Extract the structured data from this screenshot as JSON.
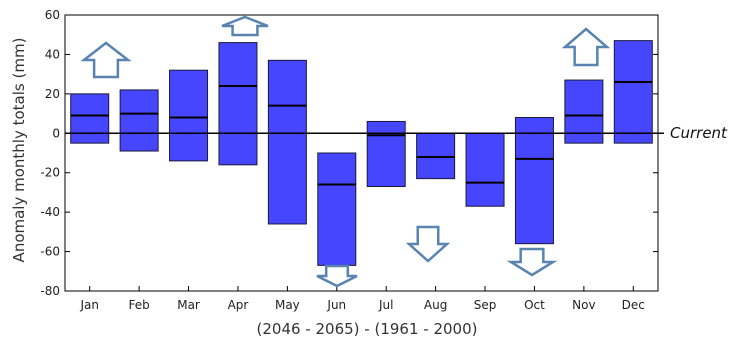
{
  "chart_data": {
    "type": "bar",
    "categories": [
      "Jan",
      "Feb",
      "Mar",
      "Apr",
      "May",
      "Jun",
      "Jul",
      "Aug",
      "Sep",
      "Oct",
      "Nov",
      "Dec"
    ],
    "ranges": [
      {
        "low": -5,
        "high": 20,
        "median": 9
      },
      {
        "low": -9,
        "high": 22,
        "median": 10
      },
      {
        "low": -14,
        "high": 32,
        "median": 8
      },
      {
        "low": -16,
        "high": 46,
        "median": 24
      },
      {
        "low": -46,
        "high": 37,
        "median": 14
      },
      {
        "low": -67,
        "high": -10,
        "median": -26
      },
      {
        "low": -27,
        "high": 6,
        "median": -1
      },
      {
        "low": -23,
        "high": 0,
        "median": -12
      },
      {
        "low": -37,
        "high": 0,
        "median": -25
      },
      {
        "low": -56,
        "high": 8,
        "median": -13
      },
      {
        "low": -5,
        "high": 27,
        "median": 9
      },
      {
        "low": -5,
        "high": 47,
        "median": 26
      }
    ],
    "trend_arrows": [
      "up",
      "",
      "",
      "up",
      "",
      "down",
      "",
      "down",
      "",
      "down",
      "up",
      ""
    ],
    "ylim": [
      -80,
      60
    ],
    "yticks": [
      60,
      40,
      20,
      0,
      -20,
      -40,
      -60,
      -80
    ],
    "ylabel": "Anomaly monthly totals (mm)",
    "xlabel": "(2046 - 2065) - (1961 - 2000)",
    "reference_label": "Current",
    "colors": {
      "bar": "#4646ff",
      "bar_edge": "#1a1a3a",
      "arrow": "#5a84b0",
      "line": "#000000"
    }
  }
}
